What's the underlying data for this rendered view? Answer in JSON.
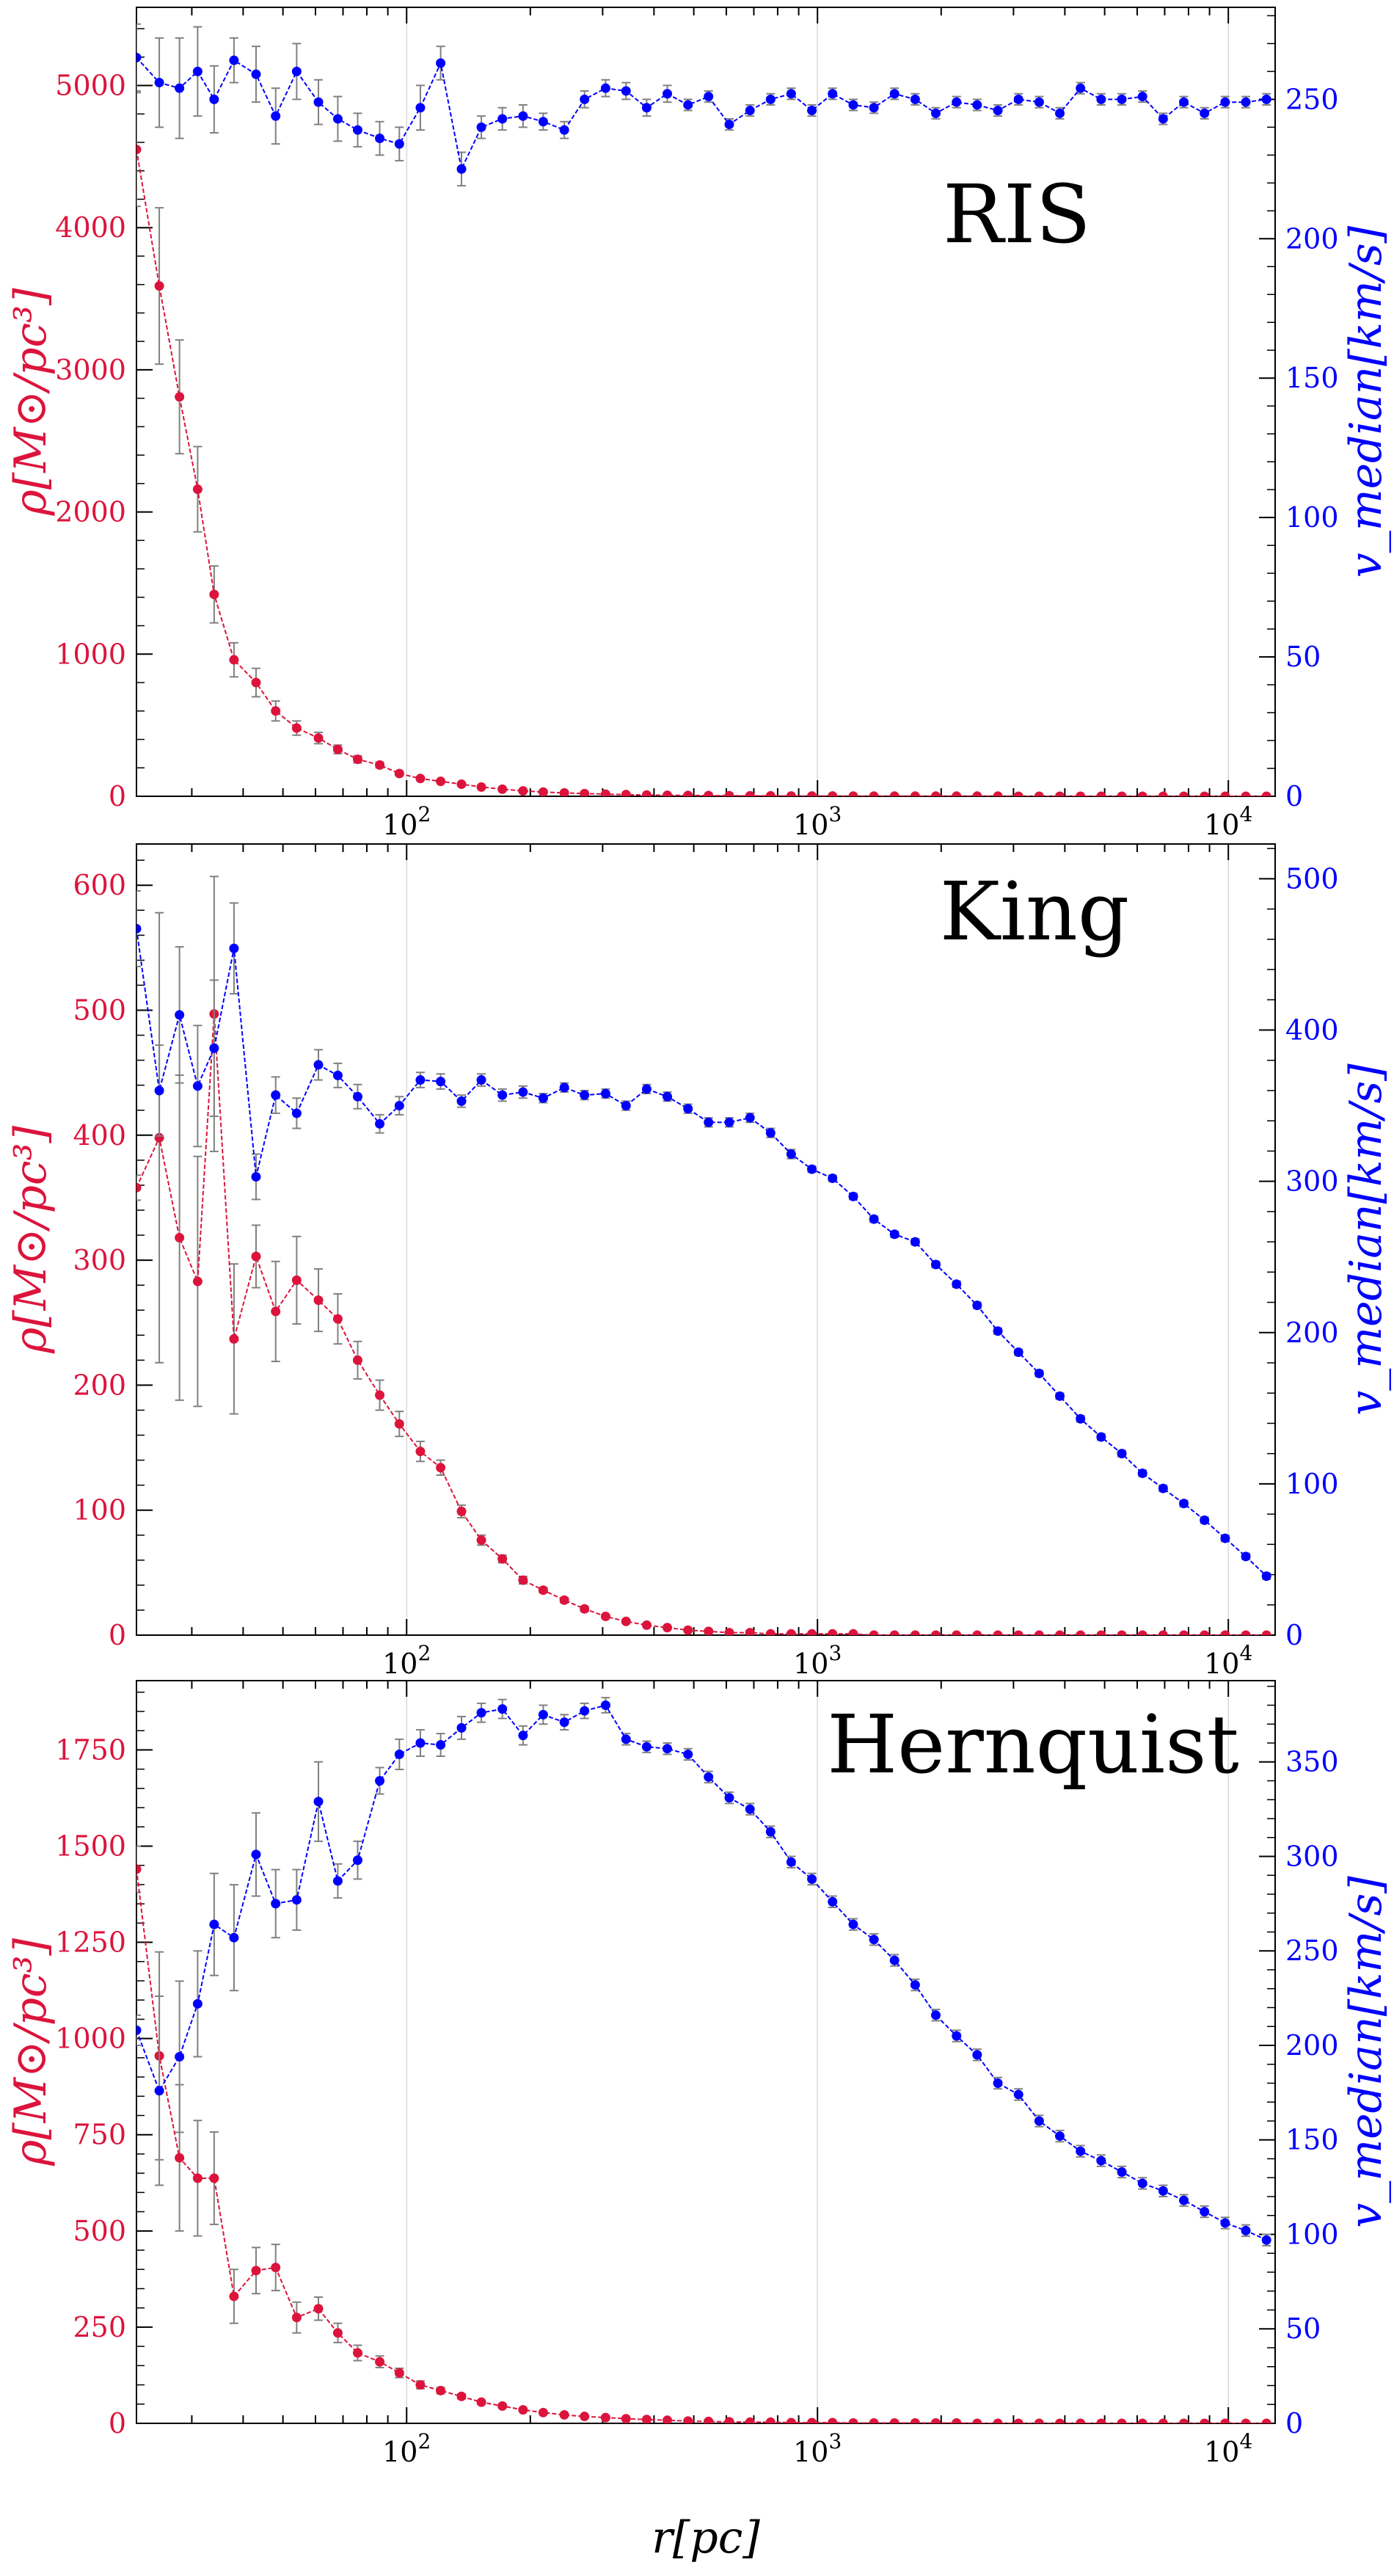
{
  "figure": {
    "xlabel": "r[pc]",
    "left_color": "#dc143c",
    "right_color": "#0000ff",
    "errorbar_color": "#808080",
    "grid_color": "#d9d9d9"
  },
  "chart_data": [
    {
      "type": "line",
      "title": "RIS",
      "x_scale": "log",
      "xlim": [
        22,
        13000
      ],
      "x_ticks": [
        "10^2",
        "10^3",
        "10^4"
      ],
      "y_left": {
        "label": "ρ[M⊙/pc³]",
        "lim": [
          0,
          5550
        ],
        "ticks": [
          "0",
          "1000",
          "2000",
          "3000",
          "4000",
          "5000"
        ]
      },
      "y_right": {
        "label": "v_median[km/s]",
        "lim": [
          0,
          283
        ],
        "ticks": [
          "0",
          "50",
          "100",
          "150",
          "200",
          "250"
        ]
      },
      "grid": "vertical at decades",
      "series": [
        {
          "axis": "left",
          "color": "#dc143c",
          "x": [
            22,
            25,
            28,
            31,
            34,
            38,
            43,
            48,
            54,
            61,
            68,
            76,
            86,
            96,
            108,
            121,
            136,
            152,
            171,
            192,
            215,
            242,
            271,
            305,
            342,
            384,
            431,
            484,
            543,
            610,
            685,
            769,
            863,
            969,
            1088,
            1222,
            1372,
            1540,
            1729,
            1941,
            2180,
            2447,
            2748,
            3085,
            3464,
            3889,
            4367,
            4903,
            5505,
            6181,
            6940,
            7792,
            8749,
            9824,
            11030,
            12384
          ],
          "y": [
            4550,
            3590,
            2810,
            2160,
            1420,
            960,
            800,
            600,
            480,
            410,
            330,
            260,
            220,
            160,
            125,
            105,
            85,
            65,
            50,
            38,
            30,
            24,
            19,
            15,
            12,
            9,
            7,
            6,
            5,
            4,
            3,
            3,
            2,
            2,
            2,
            1,
            1,
            1,
            1,
            1,
            1,
            1,
            1,
            0,
            0,
            0,
            0,
            0,
            0,
            0,
            0,
            0,
            0,
            0,
            0,
            0
          ],
          "yerr": [
            400,
            550,
            400,
            300,
            200,
            120,
            100,
            70,
            50,
            40,
            30,
            25,
            20,
            15,
            10,
            8,
            6,
            5,
            4,
            3,
            2,
            2,
            2,
            1,
            1,
            1,
            1,
            1,
            1,
            0,
            0,
            0,
            0,
            0,
            0,
            0,
            0,
            0,
            0,
            0,
            0,
            0,
            0,
            0,
            0,
            0,
            0,
            0,
            0,
            0,
            0,
            0,
            0,
            0,
            0,
            0
          ]
        },
        {
          "axis": "right",
          "color": "#0000ff",
          "x": [
            22,
            25,
            28,
            31,
            34,
            38,
            43,
            48,
            54,
            61,
            68,
            76,
            86,
            96,
            108,
            121,
            136,
            152,
            171,
            192,
            215,
            242,
            271,
            305,
            342,
            384,
            431,
            484,
            543,
            610,
            685,
            769,
            863,
            969,
            1088,
            1222,
            1372,
            1540,
            1729,
            1941,
            2180,
            2447,
            2748,
            3085,
            3464,
            3889,
            4367,
            4903,
            5505,
            6181,
            6940,
            7792,
            8749,
            9824,
            11030,
            12384
          ],
          "y": [
            265,
            256,
            254,
            260,
            250,
            264,
            259,
            244,
            260,
            249,
            243,
            239,
            236,
            234,
            247,
            263,
            225,
            240,
            243,
            244,
            242,
            239,
            250,
            254,
            253,
            247,
            252,
            248,
            251,
            241,
            246,
            250,
            252,
            246,
            252,
            248,
            247,
            252,
            250,
            245,
            249,
            248,
            246,
            250,
            249,
            245,
            254,
            250,
            250,
            251,
            243,
            249,
            245,
            249,
            249,
            250
          ],
          "yerr": [
            12,
            16,
            18,
            16,
            12,
            8,
            10,
            10,
            10,
            8,
            8,
            6,
            6,
            6,
            8,
            6,
            6,
            4,
            4,
            4,
            3,
            3,
            3,
            3,
            3,
            3,
            3,
            2,
            2,
            2,
            2,
            2,
            2,
            2,
            2,
            2,
            2,
            2,
            2,
            2,
            2,
            2,
            2,
            2,
            2,
            2,
            2,
            2,
            2,
            2,
            2,
            2,
            2,
            2,
            2,
            2
          ]
        }
      ]
    },
    {
      "type": "line",
      "title": "King",
      "x_scale": "log",
      "xlim": [
        22,
        13000
      ],
      "x_ticks": [
        "10^2",
        "10^3",
        "10^4"
      ],
      "y_left": {
        "label": "ρ[M⊙/pc³]",
        "lim": [
          0,
          633
        ],
        "ticks": [
          "0",
          "100",
          "200",
          "300",
          "400",
          "500",
          "600"
        ]
      },
      "y_right": {
        "label": "v_median[km/s]",
        "lim": [
          0,
          523
        ],
        "ticks": [
          "0",
          "100",
          "200",
          "300",
          "400",
          "500"
        ]
      },
      "grid": "vertical at decades",
      "series": [
        {
          "axis": "left",
          "color": "#dc143c",
          "x": [
            22,
            25,
            28,
            31,
            34,
            38,
            43,
            48,
            54,
            61,
            68,
            76,
            86,
            96,
            108,
            121,
            136,
            152,
            171,
            192,
            215,
            242,
            271,
            305,
            342,
            384,
            431,
            484,
            543,
            610,
            685,
            769,
            863,
            969,
            1088,
            1222,
            1372,
            1540,
            1729,
            1941,
            2180,
            2447,
            2748,
            3085,
            3464,
            3889,
            4367,
            4903,
            5505,
            6181,
            6940,
            7792,
            8749,
            9824,
            11030,
            12384
          ],
          "y": [
            358,
            398,
            318,
            283,
            497,
            237,
            303,
            259,
            284,
            268,
            253,
            220,
            192,
            169,
            147,
            134,
            99,
            76,
            61,
            44,
            36,
            28,
            21,
            15,
            11,
            8,
            6,
            4,
            3,
            2,
            2,
            1,
            1,
            1,
            1,
            1,
            0,
            0,
            0,
            0,
            0,
            0,
            0,
            0,
            0,
            0,
            0,
            0,
            0,
            0,
            0,
            0,
            0,
            0,
            0,
            0
          ],
          "yerr": [
            10,
            180,
            130,
            100,
            110,
            60,
            25,
            40,
            35,
            25,
            20,
            15,
            12,
            10,
            8,
            6,
            5,
            4,
            3,
            3,
            2,
            2,
            2,
            1,
            1,
            1,
            1,
            1,
            1,
            0,
            0,
            0,
            0,
            0,
            0,
            0,
            0,
            0,
            0,
            0,
            0,
            0,
            0,
            0,
            0,
            0,
            0,
            0,
            0,
            0,
            0,
            0,
            0,
            0,
            0,
            0
          ]
        },
        {
          "axis": "right",
          "color": "#0000ff",
          "x": [
            22,
            25,
            28,
            31,
            34,
            38,
            43,
            48,
            54,
            61,
            68,
            76,
            86,
            96,
            108,
            121,
            136,
            152,
            171,
            192,
            215,
            242,
            271,
            305,
            342,
            384,
            431,
            484,
            543,
            610,
            685,
            769,
            863,
            969,
            1088,
            1222,
            1372,
            1540,
            1729,
            1941,
            2180,
            2447,
            2748,
            3085,
            3464,
            3889,
            4367,
            4903,
            5505,
            6181,
            6940,
            7792,
            8749,
            9824,
            11030,
            12384
          ],
          "y": [
            467,
            360,
            410,
            363,
            388,
            454,
            303,
            357,
            345,
            377,
            370,
            356,
            338,
            350,
            367,
            366,
            353,
            367,
            357,
            359,
            355,
            362,
            357,
            358,
            350,
            361,
            356,
            348,
            339,
            339,
            342,
            332,
            318,
            308,
            302,
            290,
            275,
            265,
            260,
            245,
            232,
            218,
            201,
            187,
            173,
            158,
            143,
            131,
            120,
            107,
            97,
            87,
            76,
            64,
            52,
            39
          ],
          "yerr": [
            25,
            30,
            45,
            40,
            45,
            30,
            15,
            12,
            10,
            10,
            8,
            8,
            6,
            6,
            5,
            5,
            4,
            4,
            4,
            4,
            3,
            3,
            3,
            3,
            3,
            3,
            3,
            3,
            3,
            3,
            3,
            3,
            3,
            2,
            2,
            2,
            2,
            2,
            2,
            2,
            2,
            2,
            2,
            2,
            2,
            2,
            2,
            2,
            2,
            2,
            2,
            2,
            2,
            2,
            2,
            2
          ]
        }
      ]
    },
    {
      "type": "line",
      "title": "Hernquist",
      "x_scale": "log",
      "xlim": [
        22,
        13000
      ],
      "x_ticks": [
        "10^2",
        "10^3",
        "10^4"
      ],
      "y_left": {
        "label": "ρ[M⊙/pc³]",
        "lim": [
          0,
          1930
        ],
        "ticks": [
          "0",
          "250",
          "500",
          "750",
          "1000",
          "1250",
          "1500",
          "1750"
        ]
      },
      "y_right": {
        "label": "v_median[km/s]",
        "lim": [
          0,
          393
        ],
        "ticks": [
          "0",
          "50",
          "100",
          "150",
          "200",
          "250",
          "300",
          "350"
        ]
      },
      "grid": "vertical at decades",
      "series": [
        {
          "axis": "left",
          "color": "#dc143c",
          "x": [
            22,
            25,
            28,
            31,
            34,
            38,
            43,
            48,
            54,
            61,
            68,
            76,
            86,
            96,
            108,
            121,
            136,
            152,
            171,
            192,
            215,
            242,
            271,
            305,
            342,
            384,
            431,
            484,
            543,
            610,
            685,
            769,
            863,
            969,
            1088,
            1222,
            1372,
            1540,
            1729,
            1941,
            2180,
            2447,
            2748,
            3085,
            3464,
            3889,
            4367,
            4903,
            5505,
            6181,
            6940,
            7792,
            8749,
            9824,
            11030,
            12384
          ],
          "y": [
            1440,
            955,
            690,
            637,
            637,
            330,
            397,
            405,
            275,
            298,
            235,
            183,
            160,
            131,
            100,
            85,
            70,
            55,
            45,
            35,
            28,
            22,
            18,
            15,
            12,
            10,
            8,
            6,
            5,
            4,
            3,
            3,
            2,
            2,
            2,
            1,
            1,
            1,
            1,
            1,
            1,
            0,
            0,
            0,
            0,
            0,
            0,
            0,
            0,
            0,
            0,
            0,
            0,
            0,
            0,
            0
          ],
          "yerr": [
            60,
            270,
            190,
            150,
            120,
            70,
            60,
            60,
            40,
            30,
            25,
            20,
            15,
            12,
            10,
            8,
            6,
            5,
            4,
            3,
            3,
            2,
            2,
            2,
            1,
            1,
            1,
            1,
            1,
            1,
            0,
            0,
            0,
            0,
            0,
            0,
            0,
            0,
            0,
            0,
            0,
            0,
            0,
            0,
            0,
            0,
            0,
            0,
            0,
            0,
            0,
            0,
            0,
            0,
            0,
            0
          ]
        },
        {
          "axis": "right",
          "color": "#0000ff",
          "x": [
            22,
            25,
            28,
            31,
            34,
            38,
            43,
            48,
            54,
            61,
            68,
            76,
            86,
            96,
            108,
            121,
            136,
            152,
            171,
            192,
            215,
            242,
            271,
            305,
            342,
            384,
            431,
            484,
            543,
            610,
            685,
            769,
            863,
            969,
            1088,
            1222,
            1372,
            1540,
            1729,
            1941,
            2180,
            2447,
            2748,
            3085,
            3464,
            3889,
            4367,
            4903,
            5505,
            6181,
            6940,
            7792,
            8749,
            9824,
            11030,
            12384
          ],
          "y": [
            208,
            176,
            194,
            222,
            264,
            257,
            301,
            275,
            277,
            329,
            287,
            298,
            340,
            354,
            360,
            359,
            368,
            376,
            378,
            364,
            375,
            371,
            377,
            380,
            362,
            358,
            357,
            354,
            342,
            331,
            325,
            313,
            297,
            288,
            276,
            264,
            256,
            245,
            232,
            216,
            205,
            195,
            180,
            174,
            160,
            152,
            144,
            139,
            133,
            127,
            123,
            118,
            112,
            106,
            102,
            97
          ],
          "yerr": [
            8,
            50,
            40,
            28,
            27,
            28,
            22,
            18,
            16,
            21,
            9,
            10,
            7,
            8,
            7,
            6,
            6,
            5,
            5,
            5,
            5,
            4,
            4,
            4,
            3,
            3,
            3,
            3,
            3,
            3,
            3,
            3,
            3,
            3,
            3,
            3,
            3,
            3,
            3,
            3,
            3,
            3,
            3,
            3,
            3,
            3,
            3,
            3,
            3,
            3,
            3,
            3,
            3,
            3,
            3,
            3
          ]
        }
      ]
    }
  ]
}
